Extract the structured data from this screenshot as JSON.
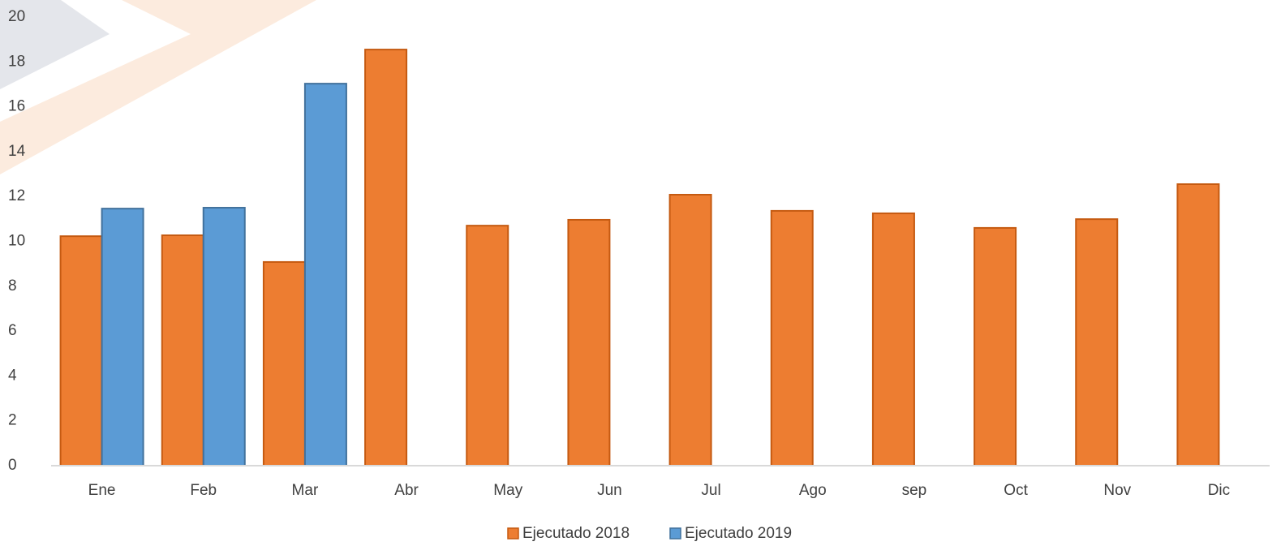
{
  "chart_data": {
    "type": "bar",
    "categories": [
      "Ene",
      "Feb",
      "Mar",
      "Abr",
      "May",
      "Jun",
      "Jul",
      "Ago",
      "sep",
      "Oct",
      "Nov",
      "Dic"
    ],
    "series": [
      {
        "name": "Ejecutado 2018",
        "color": "#ed7d31",
        "values": [
          10.23,
          10.27,
          9.08,
          18.55,
          10.7,
          10.96,
          12.08,
          11.36,
          11.25,
          10.6,
          10.99,
          12.55
        ]
      },
      {
        "name": "Ejecutado 2019",
        "color": "#5b9bd5",
        "values": [
          11.46,
          11.5,
          17.03,
          null,
          null,
          null,
          null,
          null,
          null,
          null,
          null,
          null
        ]
      }
    ],
    "ylim": [
      0,
      20
    ],
    "yticks": [
      0,
      2,
      4,
      6,
      8,
      10,
      12,
      14,
      16,
      18,
      20
    ],
    "grid": false,
    "legend": "bottom"
  }
}
